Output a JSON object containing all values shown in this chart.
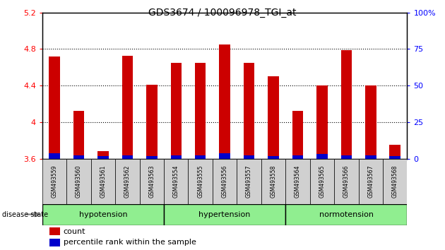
{
  "title": "GDS3674 / 100096978_TGI_at",
  "samples": [
    "GSM493559",
    "GSM493560",
    "GSM493561",
    "GSM493562",
    "GSM493563",
    "GSM493554",
    "GSM493555",
    "GSM493556",
    "GSM493557",
    "GSM493558",
    "GSM493564",
    "GSM493565",
    "GSM493566",
    "GSM493567",
    "GSM493568"
  ],
  "count_values": [
    4.72,
    4.12,
    3.68,
    4.73,
    4.41,
    4.65,
    4.65,
    4.85,
    4.65,
    4.5,
    4.12,
    4.4,
    4.79,
    4.4,
    3.75
  ],
  "percentile_values": [
    0.06,
    0.04,
    0.03,
    0.04,
    0.03,
    0.04,
    0.04,
    0.06,
    0.04,
    0.03,
    0.04,
    0.05,
    0.04,
    0.04,
    0.03
  ],
  "base_value": 3.6,
  "ylim_left": [
    3.6,
    5.2
  ],
  "ylim_right": [
    0,
    100
  ],
  "yticks_left": [
    3.6,
    4.0,
    4.4,
    4.8,
    5.2
  ],
  "yticks_right": [
    0,
    25,
    50,
    75,
    100
  ],
  "bar_color": "#cc0000",
  "percentile_color": "#0000cc",
  "groups": [
    {
      "name": "hypotension",
      "start": 0,
      "end": 5
    },
    {
      "name": "hypertension",
      "start": 5,
      "end": 10
    },
    {
      "name": "normotension",
      "start": 10,
      "end": 15
    }
  ],
  "group_color": "#90ee90",
  "disease_state_label": "disease state",
  "legend_count_label": "count",
  "legend_percentile_label": "percentile rank within the sample",
  "bar_width": 0.45,
  "tick_label_bg": "#d0d0d0"
}
